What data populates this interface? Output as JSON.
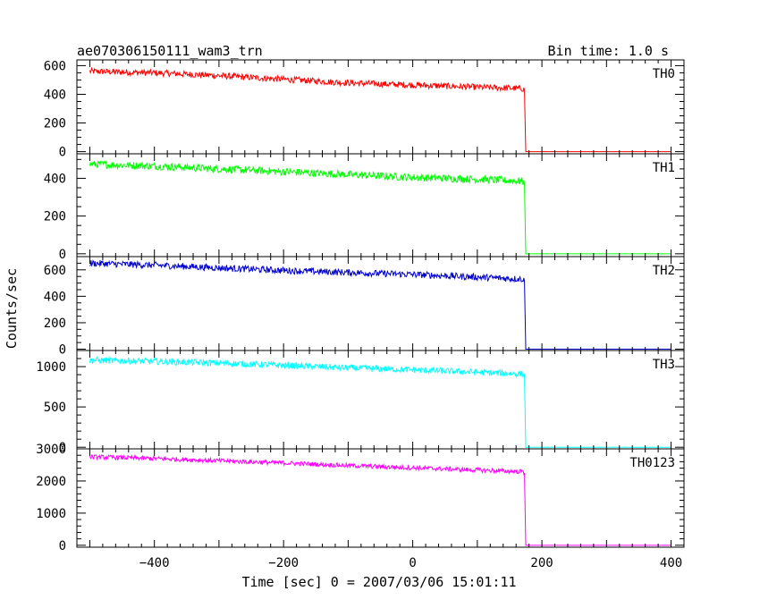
{
  "chart_data": {
    "type": "line",
    "title_left": "ae070306150111_wam3_trn",
    "title_right": "Bin time: 1.0 s",
    "xlabel": "Time [sec] 0 = 2007/03/06 15:01:11",
    "ylabel": "Counts/sec",
    "xlim": [
      -520,
      420
    ],
    "x_ticks": [
      -400,
      -200,
      0,
      200,
      400
    ],
    "x_tick_labels": [
      "−400",
      "−200",
      "0",
      "200",
      "400"
    ],
    "grid": false,
    "panels": [
      {
        "name": "TH0",
        "color": "#ff0000",
        "ylim": [
          -15,
          640
        ],
        "y_ticks": [
          0,
          200,
          400,
          600
        ],
        "y_tick_labels": [
          "0",
          "200",
          "400",
          "600"
        ],
        "x": [
          -500,
          -400,
          -300,
          -200,
          -100,
          0,
          100,
          170,
          173,
          175,
          400
        ],
        "y": [
          560,
          550,
          530,
          505,
          480,
          465,
          450,
          440,
          430,
          0,
          0
        ],
        "noise": 22
      },
      {
        "name": "TH1",
        "color": "#00ff00",
        "ylim": [
          -15,
          530
        ],
        "y_ticks": [
          0,
          200,
          400
        ],
        "y_tick_labels": [
          "0",
          "200",
          "400"
        ],
        "x": [
          -500,
          -400,
          -300,
          -200,
          -100,
          0,
          100,
          170,
          173,
          175,
          400
        ],
        "y": [
          475,
          465,
          450,
          435,
          420,
          405,
          395,
          385,
          370,
          0,
          0
        ],
        "noise": 20
      },
      {
        "name": "TH2",
        "color": "#0000cc",
        "ylim": [
          -10,
          700
        ],
        "y_ticks": [
          0,
          200,
          400,
          600
        ],
        "y_tick_labels": [
          "0",
          "200",
          "400",
          "600"
        ],
        "x": [
          -500,
          -400,
          -300,
          -200,
          -100,
          0,
          100,
          170,
          173,
          175,
          400
        ],
        "y": [
          650,
          635,
          615,
          595,
          580,
          565,
          545,
          530,
          515,
          0,
          0
        ],
        "noise": 25
      },
      {
        "name": "TH3",
        "color": "#00ffff",
        "ylim": [
          -20,
          1200
        ],
        "y_ticks": [
          0,
          500,
          1000
        ],
        "y_tick_labels": [
          "0",
          "500",
          "1000"
        ],
        "x": [
          -500,
          -400,
          -300,
          -200,
          -100,
          0,
          100,
          170,
          173,
          175,
          400
        ],
        "y": [
          1080,
          1065,
          1045,
          1015,
          985,
          960,
          930,
          910,
          890,
          0,
          0
        ],
        "noise": 40
      },
      {
        "name": "TH0123",
        "color": "#ff00ff",
        "ylim": [
          -60,
          3000
        ],
        "y_ticks": [
          0,
          1000,
          2000,
          3000
        ],
        "y_tick_labels": [
          "0",
          "1000",
          "2000",
          "3000"
        ],
        "x": [
          -500,
          -400,
          -300,
          -200,
          -100,
          0,
          100,
          170,
          173,
          175,
          400
        ],
        "y": [
          2750,
          2700,
          2630,
          2560,
          2480,
          2410,
          2340,
          2290,
          2250,
          0,
          0
        ],
        "noise": 70
      }
    ]
  }
}
